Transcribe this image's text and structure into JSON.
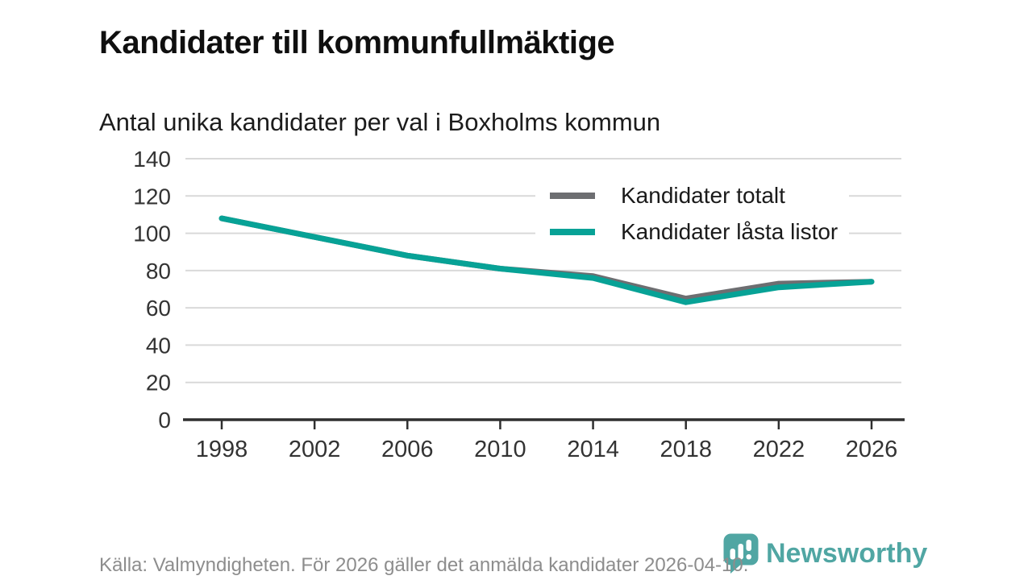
{
  "header": {
    "title": "Kandidater till kommunfullmäktige",
    "subtitle": "Antal unika kandidater per val i Boxholms kommun"
  },
  "chart_data": {
    "type": "line",
    "title": "Kandidater till kommunfullmäktige",
    "subtitle": "Antal unika kandidater per val i Boxholms kommun",
    "x": [
      1998,
      2002,
      2006,
      2010,
      2014,
      2018,
      2022,
      2026
    ],
    "series": [
      {
        "name": "Kandidater totalt",
        "color": "#6d6e71",
        "values": [
          108,
          98,
          88,
          81,
          77,
          65,
          73,
          74
        ]
      },
      {
        "name": "Kandidater låsta listor",
        "color": "#07a296",
        "values": [
          108,
          98,
          88,
          81,
          76,
          63,
          71,
          74
        ]
      }
    ],
    "xlabel": "",
    "ylabel": "",
    "ylim": [
      0,
      140
    ],
    "yticks": [
      0,
      20,
      40,
      60,
      80,
      100,
      120,
      140
    ],
    "grid": "horizontal",
    "legend_position": "top-right"
  },
  "footer": {
    "source": "Källa: Valmyndigheten. För 2026 gäller det anmälda kandidater 2026-04-10."
  },
  "logo": {
    "text": "Newsworthy",
    "color": "#429f9c",
    "icon": "bar-chart-speech-bubble"
  },
  "colors": {
    "grid": "#d9d9d9",
    "axis": "#2f2f2f",
    "tick_label": "#333333",
    "title": "#0f0f0f",
    "subtitle": "#1c1c1c",
    "source": "#8d8d8d",
    "legend_background": "#ffffff"
  }
}
